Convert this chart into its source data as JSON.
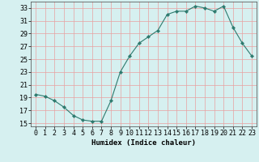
{
  "x": [
    0,
    1,
    2,
    3,
    4,
    5,
    6,
    7,
    8,
    9,
    10,
    11,
    12,
    13,
    14,
    15,
    16,
    17,
    18,
    19,
    20,
    21,
    22,
    23
  ],
  "y": [
    19.5,
    19.2,
    18.5,
    17.5,
    16.2,
    15.5,
    15.3,
    15.3,
    18.5,
    23.0,
    25.5,
    27.5,
    28.5,
    29.5,
    32.0,
    32.5,
    32.5,
    33.3,
    33.0,
    32.5,
    33.3,
    30.0,
    27.5,
    25.5
  ],
  "line_color": "#2d7a6e",
  "marker": "D",
  "marker_size": 2.2,
  "bg_color": "#d6f0f0",
  "grid_color": "#c0c0c0",
  "xlabel": "Humidex (Indice chaleur)",
  "xlim": [
    -0.5,
    23.5
  ],
  "ylim": [
    14.5,
    34.0
  ],
  "yticks": [
    15,
    17,
    19,
    21,
    23,
    25,
    27,
    29,
    31,
    33
  ],
  "xticks": [
    0,
    1,
    2,
    3,
    4,
    5,
    6,
    7,
    8,
    9,
    10,
    11,
    12,
    13,
    14,
    15,
    16,
    17,
    18,
    19,
    20,
    21,
    22,
    23
  ],
  "font_size_axis": 6.5,
  "font_size_tick": 6.0
}
